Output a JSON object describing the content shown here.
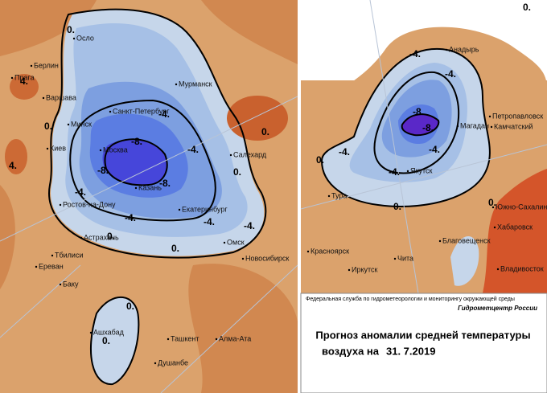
{
  "left_map": {
    "cities": [
      "Осло",
      "Берлин",
      "Прага",
      "Варшава",
      "Мурманск",
      "Минск",
      "Санкт-Петербург",
      "Киев",
      "Москва",
      "Салехард",
      "Казань",
      "Ростов-на-Дону",
      "Екатеринбург",
      "Астрахань",
      "Омск",
      "Новосибирск",
      "Тбилиси",
      "Ереван",
      "Баку",
      "Ашхабад",
      "Ташкент",
      "Алма-Ата",
      "Душанбе"
    ],
    "contour_labels": [
      "0.",
      "4.",
      "4.",
      "0.",
      "-4.",
      "-4.",
      "-8.",
      "-8.",
      "-8.",
      "-4.",
      "-4.",
      "-4.",
      "0.",
      "0.",
      "0.",
      "0.",
      "0.",
      "0.",
      "-4."
    ]
  },
  "right_map": {
    "cities": [
      "Анадырь",
      "Петропавловск",
      "Камчатский",
      "Магадан",
      "Якутск",
      "Тура",
      "Южно-Сахалинск",
      "Хабаровск",
      "Благовещенск",
      "Красноярск",
      "Чита",
      "Иркутск",
      "Владивосток"
    ],
    "contour_labels": [
      "-4.",
      "-4.",
      "-8.",
      "-8.",
      "-4.",
      "-4.",
      "-4.",
      "0.",
      "0.",
      "0.",
      "0."
    ]
  },
  "footer": {
    "agency": "Федеральная служба по гидрометеорологии и мониторингу окружающей среды",
    "center": "Гидрометцентр России",
    "title": "Прогноз аномалии средней температуры",
    "date_prefix": "воздуха на",
    "date": "31. 7.2019"
  }
}
